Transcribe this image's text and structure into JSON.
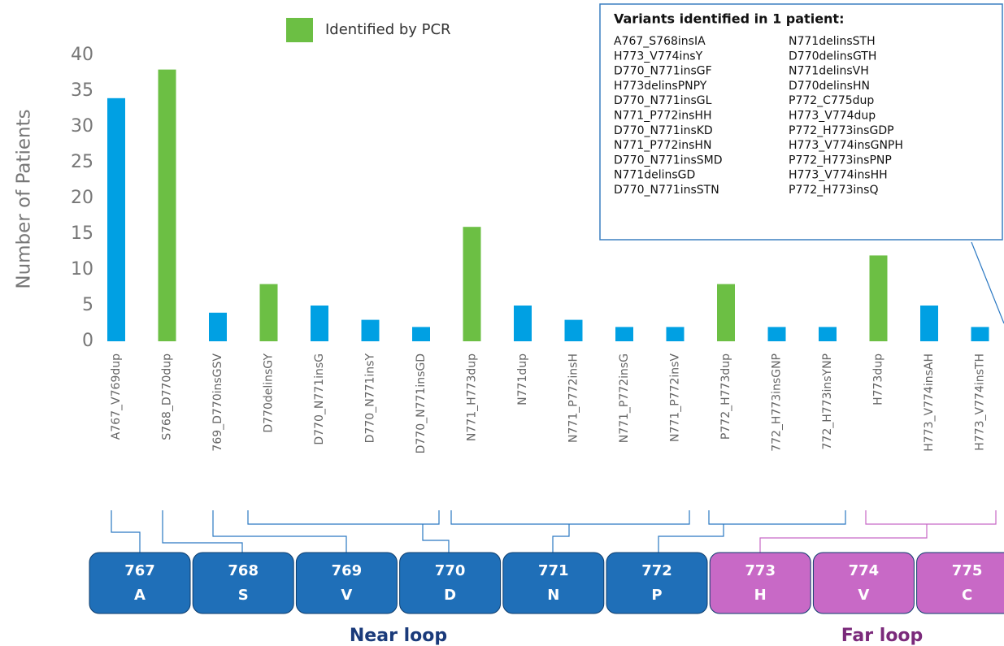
{
  "chart_data": {
    "type": "bar",
    "ylabel": "Number of Patients",
    "categories": [
      "A767_V769dup",
      "S768_D770dup",
      "769_D770insGSV",
      "D770delinsGY",
      "D770_N771insG",
      "D770_N771insY",
      "D770_N771insGD",
      "N771_H773dup",
      "N771dup",
      "N771_P772insH",
      "N771_P772insG",
      "N771_P772insV",
      "P772_H773dup",
      "772_H773insGNP",
      "772_H773insYNP",
      "H773dup",
      "H773_V774insAH",
      "H773_V774insTH"
    ],
    "values": [
      34,
      38,
      4,
      8,
      5,
      3,
      2,
      16,
      5,
      3,
      2,
      2,
      8,
      2,
      2,
      12,
      5,
      2
    ],
    "colors": [
      "#00a0e3",
      "#6cbf44",
      "#00a0e3",
      "#6cbf44",
      "#00a0e3",
      "#00a0e3",
      "#00a0e3",
      "#6cbf44",
      "#00a0e3",
      "#00a0e3",
      "#00a0e3",
      "#00a0e3",
      "#6cbf44",
      "#00a0e3",
      "#00a0e3",
      "#6cbf44",
      "#00a0e3",
      "#00a0e3"
    ],
    "ylim": [
      0,
      40
    ],
    "yticks": [
      0,
      5,
      10,
      15,
      20,
      25,
      30,
      35,
      40
    ],
    "legend": {
      "label": "Identified by PCR",
      "color": "#6cbf44"
    }
  },
  "inset": {
    "title": "Variants identified in 1 patient:",
    "columns": [
      [
        "A767_S768insIA",
        "H773_V774insY",
        "D770_N771insGF",
        "H773delinsPNPY",
        "D770_N771insGL",
        "N771_P772insHH",
        "D770_N771insKD",
        "N771_P772insHN",
        "D770_N771insSMD",
        "N771delinsGD",
        "D770_N771insSTN"
      ],
      [
        "N771delinsSTH",
        "D770delinsGTH",
        "N771delinsVH",
        "D770delinsHN",
        "P772_C775dup",
        "H773_V774dup",
        "P772_H773insGDP",
        "H773_V774insGNPH",
        "P772_H773insPNP",
        "H773_V774insHH",
        "P772_H773insQ"
      ]
    ]
  },
  "residues": [
    {
      "number": "767",
      "letter": "A",
      "color": "#1f6fb8"
    },
    {
      "number": "768",
      "letter": "S",
      "color": "#1f6fb8"
    },
    {
      "number": "769",
      "letter": "V",
      "color": "#1f6fb8"
    },
    {
      "number": "770",
      "letter": "D",
      "color": "#1f6fb8"
    },
    {
      "number": "771",
      "letter": "N",
      "color": "#1f6fb8"
    },
    {
      "number": "772",
      "letter": "P",
      "color": "#1f6fb8"
    },
    {
      "number": "773",
      "letter": "H",
      "color": "#c869c6"
    },
    {
      "number": "774",
      "letter": "V",
      "color": "#c869c6"
    },
    {
      "number": "775",
      "letter": "C",
      "color": "#c869c6"
    }
  ],
  "loops": [
    "Near loop",
    "Far loop"
  ]
}
